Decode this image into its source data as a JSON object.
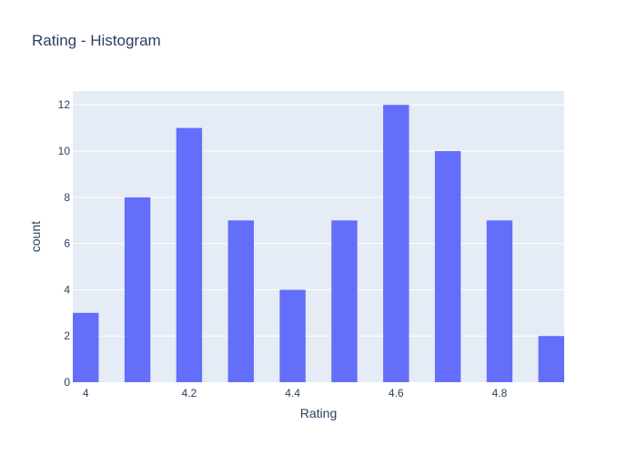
{
  "chart_data": {
    "type": "bar",
    "title": "Rating - Histogram",
    "xlabel": "Rating",
    "ylabel": "count",
    "categories": [
      "4.0",
      "4.1",
      "4.2",
      "4.3",
      "4.4",
      "4.5",
      "4.6",
      "4.7",
      "4.8",
      "4.9"
    ],
    "values": [
      3,
      8,
      11,
      7,
      4,
      7,
      12,
      10,
      7,
      2
    ],
    "x_ticks": [
      4,
      4.2,
      4.4,
      4.6,
      4.8
    ],
    "x_tick_labels": [
      "4",
      "4.2",
      "4.4",
      "4.6",
      "4.8"
    ],
    "y_ticks": [
      0,
      2,
      4,
      6,
      8,
      10,
      12
    ],
    "xlim": [
      3.975,
      4.925
    ],
    "ylim": [
      0,
      12.6
    ],
    "bin_width": 0.1,
    "bar_fraction": 0.5,
    "grid": true,
    "colors": {
      "bar": "#636efa",
      "plot_background": "#e5ecf6",
      "grid": "#ffffff",
      "text": "#2a3f5f"
    }
  }
}
